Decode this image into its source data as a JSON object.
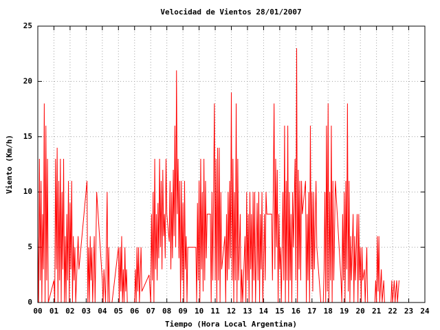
{
  "chart_data": {
    "type": "line",
    "title": "Velocidad de Vientos 28/01/2007",
    "x_label": "Tiempo (Hora Local Argentina)",
    "y_label": "Viento (Km/h)",
    "color": "#ff0000",
    "grid": true,
    "xlim": [
      0,
      24
    ],
    "ylim": [
      0,
      25
    ],
    "yticks": [
      0,
      5,
      10,
      15,
      20,
      25
    ],
    "xticks": [
      {
        "value": 0,
        "label": "00"
      },
      {
        "value": 1,
        "label": "01"
      },
      {
        "value": 2,
        "label": "02"
      },
      {
        "value": 3,
        "label": "03"
      },
      {
        "value": 4,
        "label": "04"
      },
      {
        "value": 5,
        "label": "05"
      },
      {
        "value": 6,
        "label": "06"
      },
      {
        "value": 7,
        "label": "07"
      },
      {
        "value": 8,
        "label": "08"
      },
      {
        "value": 9,
        "label": "09"
      },
      10,
      11,
      12,
      13,
      14,
      15,
      16,
      17,
      18,
      19,
      20,
      21,
      22,
      23,
      24
    ],
    "x": [
      0,
      0.05,
      0.1,
      0.15,
      0.2,
      0.25,
      0.3,
      0.35,
      0.4,
      0.45,
      0.5,
      0.55,
      0.6,
      0.65,
      1,
      1.05,
      1.1,
      1.15,
      1.2,
      1.25,
      1.3,
      1.35,
      1.4,
      1.45,
      1.5,
      1.55,
      1.6,
      1.65,
      1.7,
      1.75,
      1.8,
      1.85,
      1.9,
      1.95,
      2,
      2.05,
      2.1,
      2.15,
      2.2,
      2.25,
      2.3,
      2.35,
      2.5,
      2.55,
      3.05,
      3.1,
      3.15,
      3.2,
      3.25,
      3.3,
      3.35,
      3.4,
      3.5,
      3.55,
      3.65,
      4,
      4.05,
      4.1,
      4.2,
      4.3,
      4.35,
      4.4,
      4.45,
      4.6,
      5,
      5.05,
      5.1,
      5.15,
      5.2,
      5.25,
      5.3,
      5.35,
      5.4,
      5.45,
      5.5,
      5.55,
      6,
      6.05,
      6.1,
      6.15,
      6.2,
      6.25,
      6.3,
      6.4,
      6.45,
      6.9,
      7,
      7.05,
      7.1,
      7.15,
      7.2,
      7.25,
      7.3,
      7.35,
      7.4,
      7.45,
      7.5,
      7.55,
      7.6,
      7.65,
      7.7,
      7.75,
      7.8,
      7.85,
      7.9,
      7.95,
      8,
      8.15,
      8.2,
      8.25,
      8.3,
      8.35,
      8.4,
      8.45,
      8.5,
      8.55,
      8.6,
      8.65,
      8.7,
      8.75,
      8.8,
      8.85,
      8.9,
      8.95,
      9,
      9.05,
      9.1,
      9.15,
      9.2,
      9.25,
      9.3,
      9.8,
      9.85,
      9.9,
      9.95,
      10,
      10.05,
      10.1,
      10.15,
      10.2,
      10.25,
      10.3,
      10.35,
      10.4,
      10.45,
      10.5,
      10.6,
      10.7,
      10.75,
      10.8,
      10.85,
      10.95,
      11,
      11.05,
      11.1,
      11.15,
      11.2,
      11.25,
      11.3,
      11.35,
      11.4,
      11.6,
      11.65,
      11.7,
      11.75,
      11.8,
      11.85,
      11.9,
      11.95,
      12,
      12.05,
      12.1,
      12.15,
      12.2,
      12.25,
      12.3,
      12.35,
      12.4,
      12.45,
      12.55,
      12.6,
      12.65,
      12.7,
      12.85,
      12.9,
      12.95,
      13,
      13.05,
      13.1,
      13.15,
      13.2,
      13.25,
      13.3,
      13.35,
      13.4,
      13.45,
      13.5,
      13.6,
      13.65,
      13.7,
      13.75,
      13.8,
      13.85,
      13.9,
      13.95,
      14.05,
      14.1,
      14.15,
      14.2,
      14.5,
      14.55,
      14.65,
      14.7,
      14.75,
      14.8,
      14.85,
      14.9,
      14.95,
      15,
      15.05,
      15.1,
      15.2,
      15.25,
      15.3,
      15.35,
      15.4,
      15.45,
      15.5,
      15.55,
      15.6,
      15.65,
      15.7,
      15.75,
      15.8,
      15.85,
      15.95,
      16,
      16.05,
      16.1,
      16.15,
      16.2,
      16.25,
      16.3,
      16.35,
      16.4,
      16.6,
      16.65,
      16.7,
      16.75,
      16.8,
      16.85,
      16.9,
      16.95,
      17,
      17.05,
      17.1,
      17.15,
      17.25,
      17.3,
      17.55,
      17.7,
      17.75,
      17.8,
      17.85,
      17.9,
      17.95,
      18,
      18.05,
      18.1,
      18.15,
      18.2,
      18.25,
      18.3,
      18.35,
      18.45,
      18.8,
      18.85,
      18.9,
      18.95,
      19,
      19.05,
      19.1,
      19.15,
      19.2,
      19.25,
      19.3,
      19.35,
      19.4,
      19.45,
      19.55,
      19.6,
      19.65,
      19.7,
      19.8,
      19.85,
      19.9,
      19.95,
      20,
      20.05,
      20.1,
      20.15,
      20.25,
      20.3,
      20.4,
      20.45,
      20.9,
      20.95,
      21,
      21.05,
      21.1,
      21.15,
      21.2,
      21.3,
      21.35,
      21.45,
      21.5,
      21.9,
      21.95,
      22,
      22.1,
      22.15,
      22.25,
      22.3,
      22.4
    ],
    "values": [
      6,
      0,
      13,
      2,
      11,
      0,
      8,
      3,
      18,
      0,
      16,
      2,
      13,
      0,
      2,
      0,
      13,
      3,
      14,
      0,
      11,
      2,
      13,
      0,
      10,
      3,
      13,
      0,
      6,
      0,
      8,
      2,
      11,
      0,
      9,
      3,
      11,
      0,
      6,
      2,
      5,
      0,
      6,
      3,
      11,
      0,
      5,
      0,
      6,
      2,
      5,
      0,
      6,
      0,
      10,
      2,
      0,
      3,
      0,
      10,
      0,
      5,
      0,
      0,
      5,
      0,
      5,
      1,
      6,
      0,
      3,
      0,
      5,
      1,
      3,
      0,
      0,
      3,
      0,
      5,
      1,
      5,
      0,
      5,
      1,
      2.5,
      0,
      8,
      2,
      10,
      0,
      13,
      3,
      8,
      2,
      9,
      4,
      13,
      5,
      11,
      3,
      12,
      6,
      8,
      4,
      13,
      8,
      5.5,
      11,
      3,
      10,
      4,
      12,
      6,
      16,
      5,
      21,
      8,
      13,
      4,
      11,
      0,
      11,
      2,
      9,
      0,
      11,
      3,
      6,
      0,
      5,
      5,
      0,
      9,
      2,
      11,
      0,
      13,
      3,
      10,
      1,
      13,
      2,
      11,
      4,
      8,
      8,
      8,
      0,
      10,
      2,
      18,
      2,
      13,
      0,
      14,
      2,
      14,
      0,
      10,
      3,
      6,
      0,
      8,
      2,
      10,
      3,
      11,
      4,
      19,
      2,
      13,
      0,
      10,
      2,
      18,
      0,
      13,
      2,
      8,
      0,
      3,
      0,
      6,
      0,
      10,
      2,
      8,
      0,
      10,
      3,
      8,
      0,
      10,
      2,
      10,
      0,
      9,
      2,
      10,
      0,
      8,
      3,
      10,
      0,
      8,
      2,
      10,
      8,
      8,
      2,
      18,
      3,
      13,
      5,
      12,
      0,
      8,
      3,
      5,
      0,
      10,
      2,
      16,
      0,
      11,
      2,
      16,
      0,
      10,
      2,
      8,
      0,
      10,
      5,
      13,
      2,
      23,
      0,
      12,
      3,
      11,
      2,
      11,
      8,
      11,
      0,
      8,
      2,
      10,
      0,
      16,
      3,
      10,
      1,
      10,
      3,
      11,
      5,
      0,
      0,
      3,
      10,
      0,
      16,
      1,
      18,
      0,
      10,
      2,
      16,
      0,
      11,
      2,
      11,
      2,
      0,
      8,
      2,
      10,
      0,
      11,
      3,
      18,
      1,
      11,
      0,
      6,
      2,
      8,
      0,
      6,
      2,
      8,
      0,
      8,
      2,
      5,
      0,
      5,
      2,
      3,
      0,
      5,
      0,
      0,
      2,
      0,
      6,
      1,
      6,
      0,
      3,
      0,
      2,
      0,
      0,
      2,
      0,
      2,
      0,
      2,
      0,
      2
    ]
  }
}
